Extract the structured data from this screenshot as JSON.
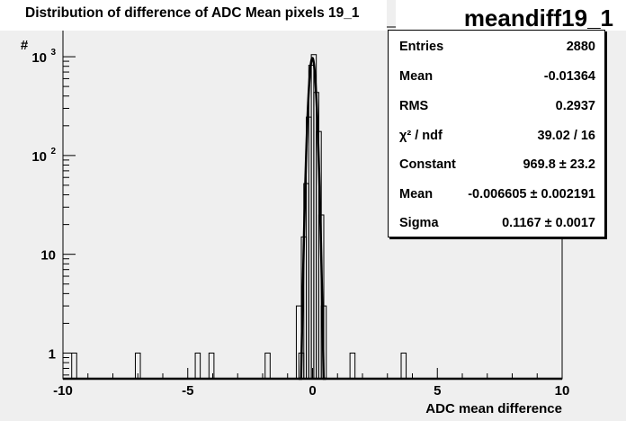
{
  "chart_data": {
    "type": "histogram",
    "title": "Distribution of difference of ADC Mean   pixels 19_1",
    "histogram_name": "meandiff19_1",
    "xlabel": "ADC mean difference",
    "ylabel": "#",
    "xlim": [
      -10,
      10
    ],
    "ylim_log": [
      0.55,
      2000
    ],
    "yscale": "log",
    "x_ticks": [
      "-10",
      "-5",
      "0",
      "5",
      "10"
    ],
    "y_ticks": [
      {
        "value": 1,
        "label": "1"
      },
      {
        "value": 10,
        "label": "10"
      },
      {
        "value": 100,
        "label": "10",
        "exp": "2"
      },
      {
        "value": 1000,
        "label": "10",
        "exp": "3"
      }
    ],
    "bins": [
      {
        "x": -9.55,
        "count": 1
      },
      {
        "x": -7.0,
        "count": 1
      },
      {
        "x": -4.6,
        "count": 1
      },
      {
        "x": -4.05,
        "count": 1
      },
      {
        "x": -1.8,
        "count": 1
      },
      {
        "x": -0.55,
        "count": 3
      },
      {
        "x": -0.45,
        "count": 1
      },
      {
        "x": -0.35,
        "count": 15
      },
      {
        "x": -0.25,
        "count": 52
      },
      {
        "x": -0.15,
        "count": 245
      },
      {
        "x": -0.05,
        "count": 820
      },
      {
        "x": 0.05,
        "count": 1050
      },
      {
        "x": 0.15,
        "count": 435
      },
      {
        "x": 0.25,
        "count": 175
      },
      {
        "x": 0.35,
        "count": 25
      },
      {
        "x": 0.45,
        "count": 3
      },
      {
        "x": 1.6,
        "count": 1
      },
      {
        "x": 3.65,
        "count": 1
      }
    ],
    "bin_width": 0.2,
    "fit": {
      "type": "gaussian",
      "constant": 969.8,
      "mean": -0.006605,
      "sigma": 0.1167
    },
    "stats": [
      {
        "key": "Entries",
        "value": "2880"
      },
      {
        "key": "Mean",
        "value": "-0.01364"
      },
      {
        "key": "RMS",
        "value": "0.2937"
      },
      {
        "key": "χ² / ndf",
        "value": "39.02 / 16"
      },
      {
        "key": "Constant",
        "value": "969.8 ± 23.2"
      },
      {
        "key": "Mean",
        "value": "-0.006605 ± 0.002191"
      },
      {
        "key": "Sigma",
        "value": "0.1167 ± 0.0017"
      }
    ]
  }
}
